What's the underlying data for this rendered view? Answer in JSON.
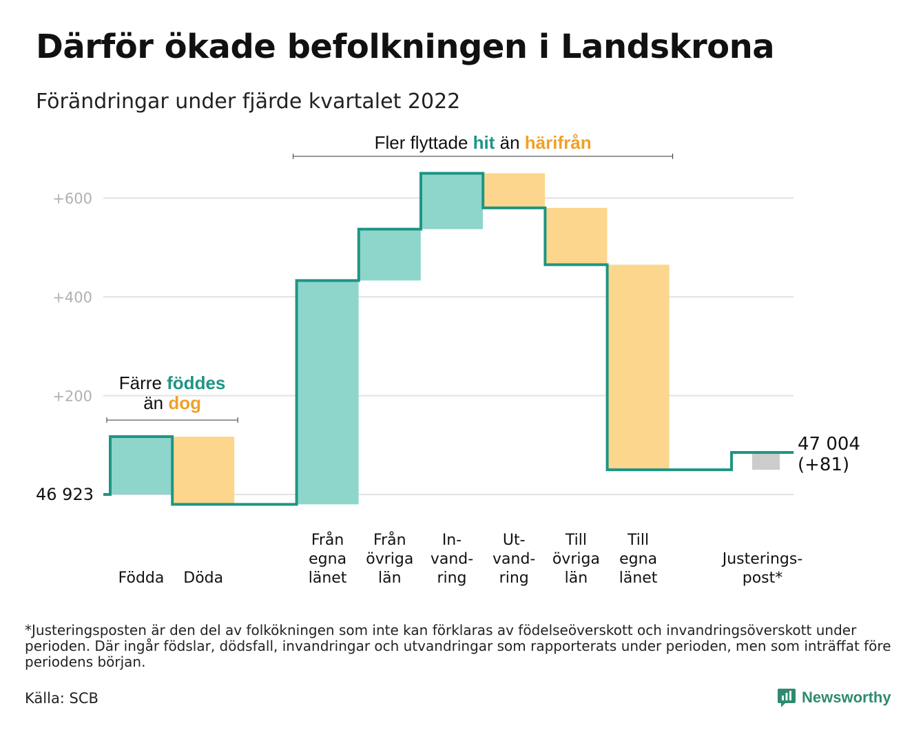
{
  "title": "Därför ökade befolkningen i Landskrona",
  "subtitle": "Förändringar under fjärde kvartalet 2022",
  "chart_data": {
    "type": "waterfall",
    "start_value": 46923,
    "start_label": "46 923",
    "end_label_lines": [
      "47 004",
      "(+81)"
    ],
    "y_ticks": [
      {
        "value": 200,
        "label": "+200"
      },
      {
        "value": 400,
        "label": "+400"
      },
      {
        "value": 600,
        "label": "+600"
      }
    ],
    "ylim": [
      -30,
      660
    ],
    "grid": true,
    "steps": [
      {
        "label_lines": [
          "Födda"
        ],
        "change": 117,
        "kind": "in"
      },
      {
        "label_lines": [
          "Döda"
        ],
        "change": -137,
        "kind": "out"
      },
      {
        "label_lines": [],
        "change": 0,
        "kind": "gap"
      },
      {
        "label_lines": [
          "Från",
          "egna",
          "länet"
        ],
        "change": 453,
        "kind": "in"
      },
      {
        "label_lines": [
          "Från",
          "övriga",
          "län"
        ],
        "change": 104,
        "kind": "in"
      },
      {
        "label_lines": [
          "In-",
          "vand-",
          "ring"
        ],
        "change": 113,
        "kind": "in"
      },
      {
        "label_lines": [
          "Ut-",
          "vand-",
          "ring"
        ],
        "change": -70,
        "kind": "out"
      },
      {
        "label_lines": [
          "Till",
          "övriga",
          "län"
        ],
        "change": -115,
        "kind": "out"
      },
      {
        "label_lines": [
          "Till",
          "egna",
          "länet"
        ],
        "change": -415,
        "kind": "out"
      },
      {
        "label_lines": [],
        "change": 0,
        "kind": "gap"
      },
      {
        "label_lines": [
          "Justerings-",
          "post*"
        ],
        "change": 35,
        "kind": "adjust"
      }
    ],
    "annotations": [
      {
        "parts": [
          {
            "text": "Färre ",
            "style": "plain"
          },
          {
            "text": "föddes",
            "style": "in"
          }
        ],
        "parts2": [
          {
            "text": "än ",
            "style": "plain"
          },
          {
            "text": "dog",
            "style": "out"
          }
        ],
        "from_step": 0,
        "to_step": 1
      },
      {
        "parts": [
          {
            "text": "Fler flyttade ",
            "style": "plain"
          },
          {
            "text": "hit",
            "style": "in"
          },
          {
            "text": " än ",
            "style": "plain"
          },
          {
            "text": "härifrån",
            "style": "out"
          }
        ],
        "from_step": 3,
        "to_step": 8
      }
    ],
    "colors": {
      "in_fill": "#8ed5cc",
      "out_fill": "#fbd68c",
      "adjust_fill": "#cccccc",
      "line": "#1e9583",
      "in_text": "#1e9583",
      "out_text": "#f0a029",
      "grid": "#e2e2e2",
      "tick_text": "#b0b0b0"
    }
  },
  "footnote": "*Justeringsposten är den del av folkökningen som inte kan förklaras av födelseöverskott och invandringsöverskott under perioden. Där ingår födslar, dödsfall, invandringar och utvandringar som rapporterats under perioden, men som inträffat före periodens början.",
  "source": "Källa: SCB",
  "brand": {
    "name": "Newsworthy",
    "icon": "bar-chart-icon",
    "color": "#2e8b6f"
  }
}
